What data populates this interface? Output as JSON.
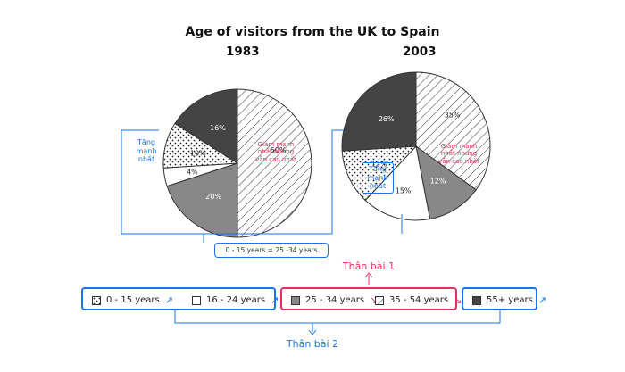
{
  "chart_data": [
    {
      "type": "pie",
      "title": "1983",
      "categories": [
        "0 - 15 years",
        "16 - 24 years",
        "25 - 34 years",
        "35 - 54 years",
        "55+ years"
      ],
      "values": [
        10,
        4,
        20,
        50,
        16
      ],
      "labels": [
        "10%",
        "4%",
        "20%",
        "50%",
        "16%"
      ]
    },
    {
      "type": "pie",
      "title": "2003",
      "categories": [
        "0 - 15 years",
        "16 - 24 years",
        "25 - 34 years",
        "35 - 54 years",
        "55+ years"
      ],
      "values": [
        12,
        15,
        12,
        35,
        26
      ],
      "labels": [
        "12%",
        "15%",
        "12%",
        "35%",
        "26%"
      ]
    }
  ],
  "title": "Age of visitors from the UK to Spain",
  "annotations": {
    "increase": "Tăng\nmạnh\nnhất",
    "decrease": "Giảm mạnh\nnhất nhưng\nvẫn cao nhất",
    "equal": "0 - 15 years = 25 -34 years",
    "body1": "Thân bài 1",
    "body2": "Thân bài 2"
  },
  "legend": [
    {
      "label": "0 - 15 years",
      "trend": "up"
    },
    {
      "label": "16 - 24 years",
      "trend": "up"
    },
    {
      "label": "25 - 34 years",
      "trend": "down"
    },
    {
      "label": "35 - 54 years",
      "trend": "down"
    },
    {
      "label": "55+ years",
      "trend": "up"
    }
  ],
  "colors": {
    "blue": "#1a73e8",
    "red": "#e03060",
    "dark": "#444444",
    "medium": "#888888"
  }
}
